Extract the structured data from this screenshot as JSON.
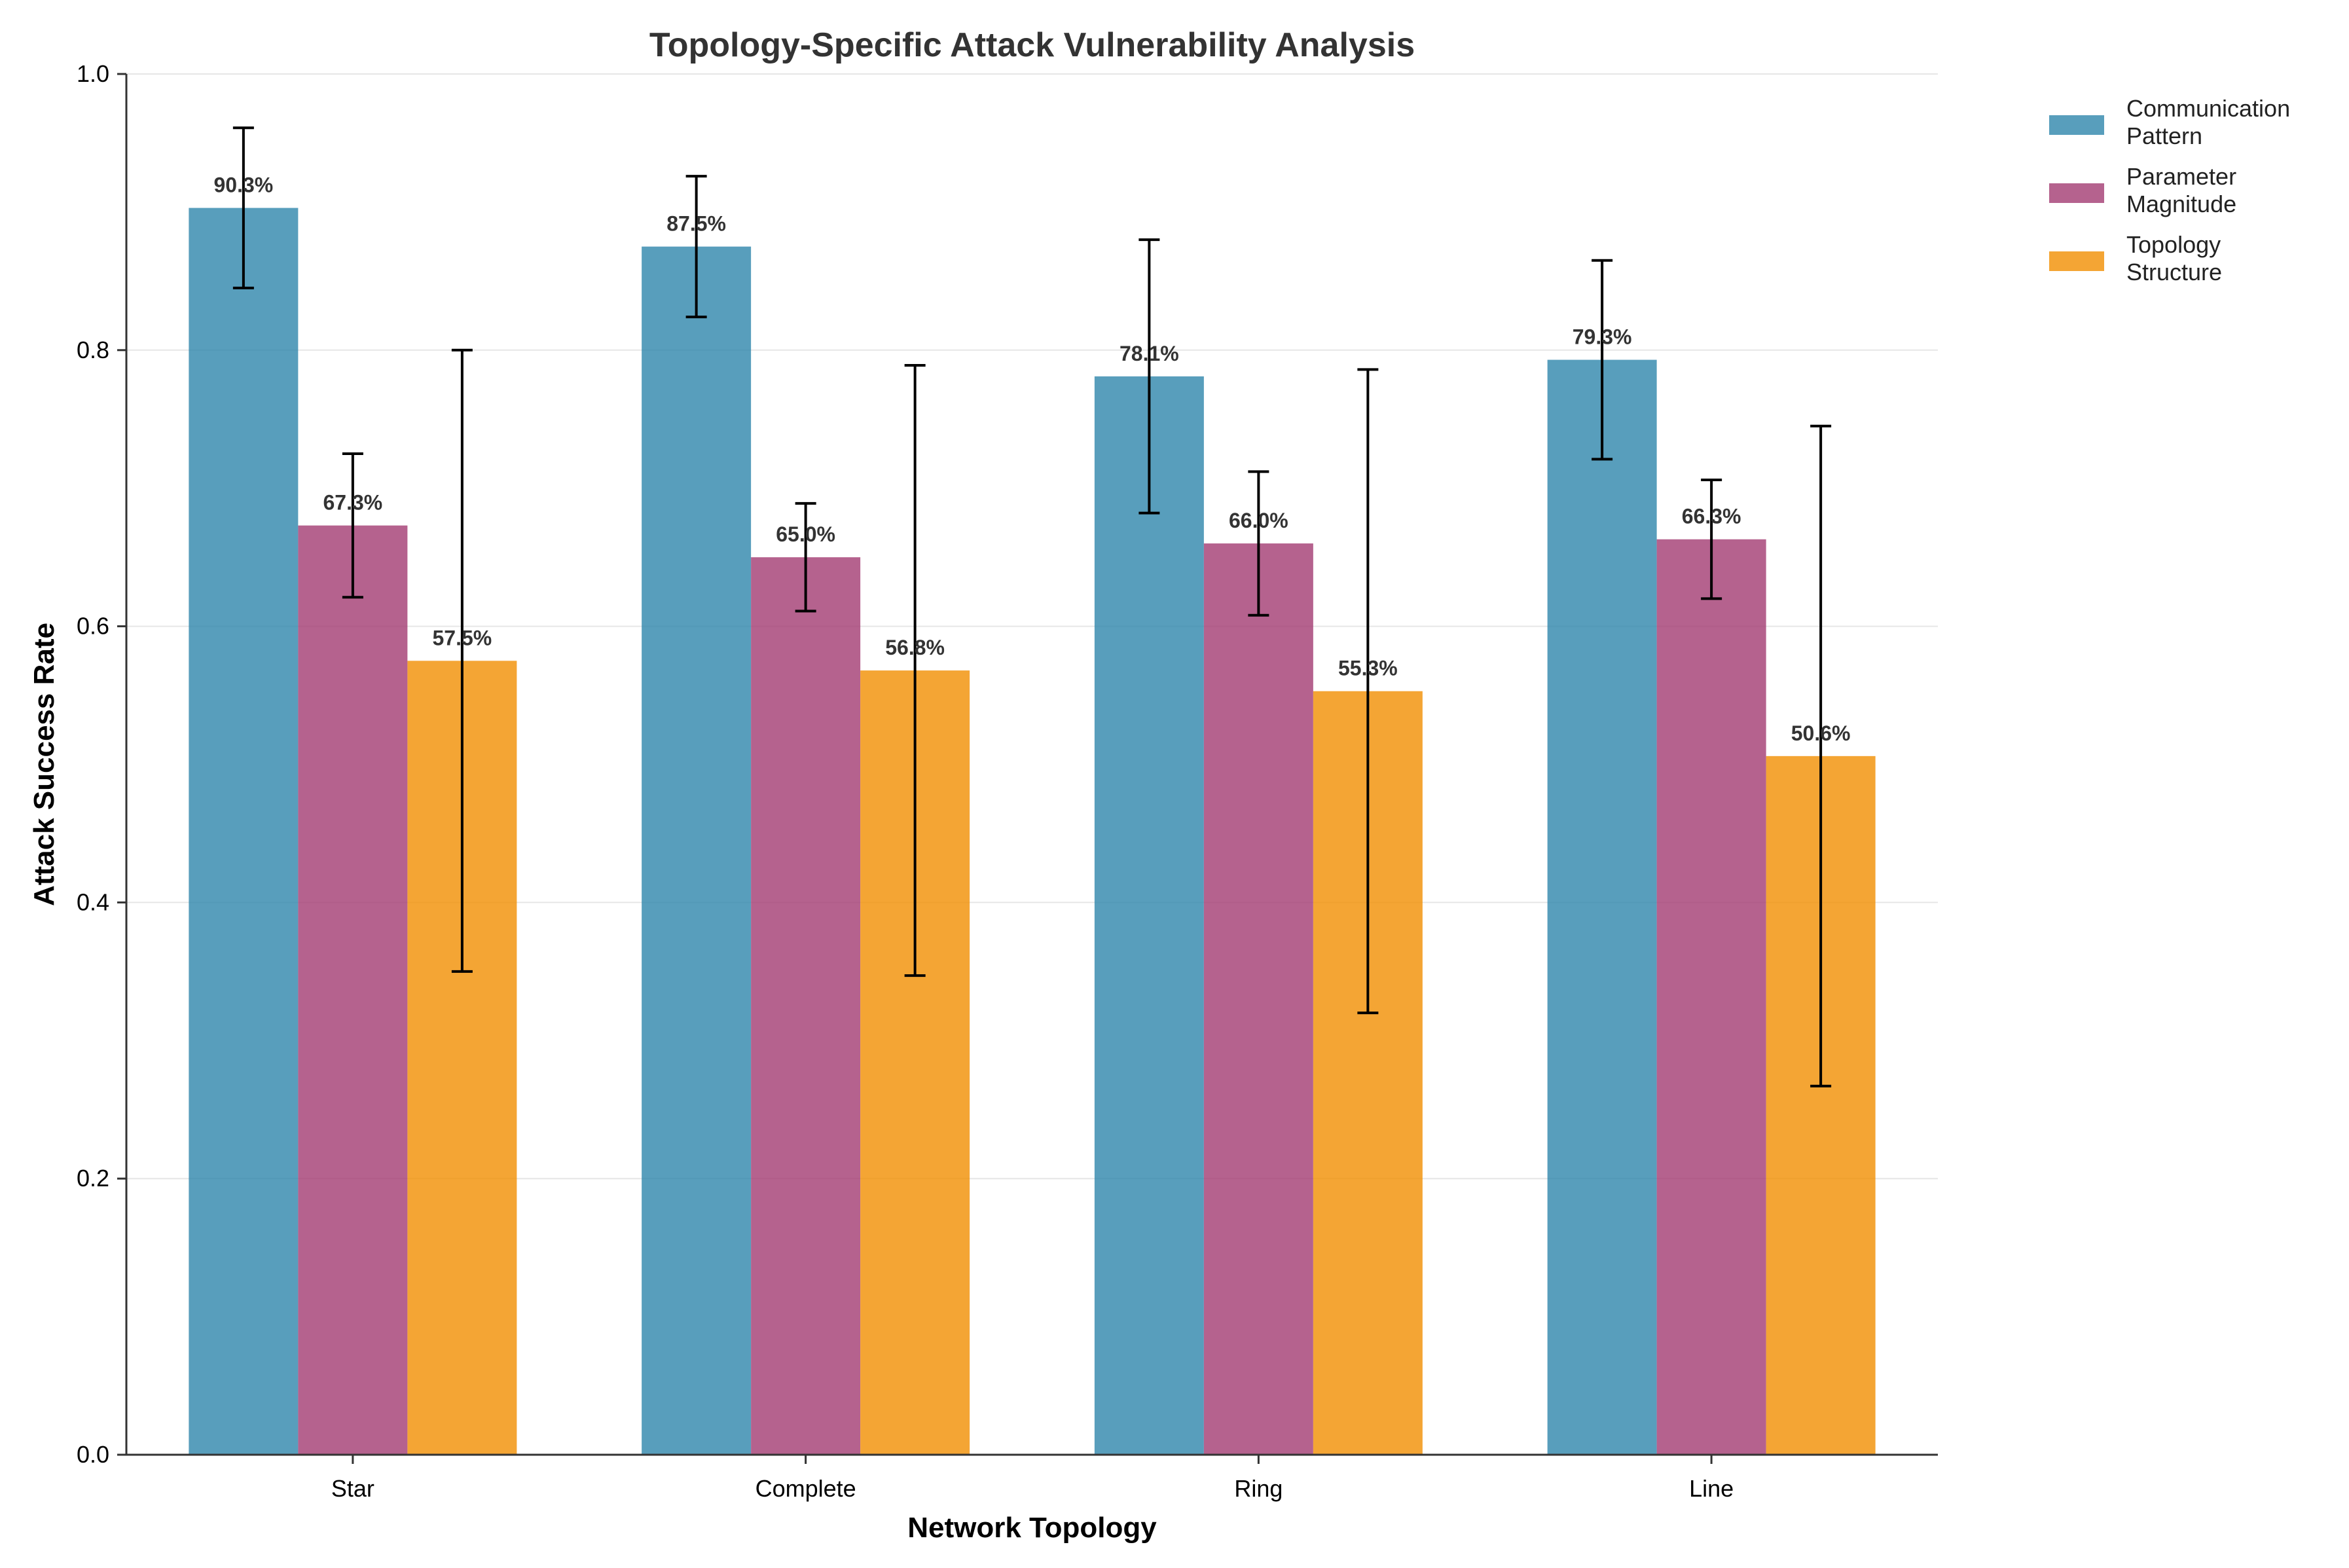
{
  "chart_data": {
    "type": "bar",
    "title": "Topology-Specific Attack Vulnerability Analysis",
    "xlabel": "Network Topology",
    "ylabel": "Attack Success Rate",
    "categories": [
      "Star",
      "Complete",
      "Ring",
      "Line"
    ],
    "ylim": [
      0,
      1.0
    ],
    "yticks": [
      "0.0",
      "0.2",
      "0.4",
      "0.6",
      "0.8",
      "1.0"
    ],
    "grid": "y-major, light",
    "legend": {
      "position": "outside-top-right",
      "entries": [
        [
          "Communication",
          "Pattern"
        ],
        [
          "Parameter",
          "Magnitude"
        ],
        [
          "Topology",
          "Structure"
        ]
      ]
    },
    "series": [
      {
        "name": "Communication Pattern",
        "color": "#2E86AB",
        "values": [
          0.903,
          0.875,
          0.781,
          0.793
        ],
        "errors": [
          0.058,
          0.051,
          0.099,
          0.072
        ],
        "labels": [
          "90.3%",
          "87.5%",
          "78.1%",
          "79.3%"
        ]
      },
      {
        "name": "Parameter Magnitude",
        "color": "#A23B72",
        "values": [
          0.673,
          0.65,
          0.66,
          0.663
        ],
        "errors": [
          0.052,
          0.039,
          0.052,
          0.043
        ],
        "labels": [
          "67.3%",
          "65.0%",
          "66.0%",
          "66.3%"
        ]
      },
      {
        "name": "Topology Structure",
        "color": "#F18F01",
        "values": [
          0.575,
          0.568,
          0.553,
          0.506
        ],
        "errors": [
          0.225,
          0.221,
          0.233,
          0.239
        ],
        "labels": [
          "57.5%",
          "56.8%",
          "55.3%",
          "50.6%"
        ]
      }
    ]
  }
}
